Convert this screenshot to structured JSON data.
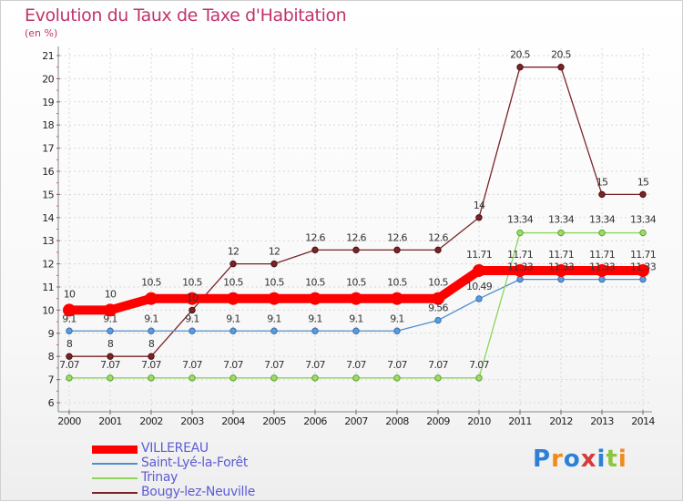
{
  "title": "Evolution du Taux de Taxe d'Habitation",
  "unit": "(en %)",
  "logo_text": "Proxiti",
  "chart_data": {
    "type": "line",
    "title": "Evolution du Taux de Taxe d'Habitation",
    "ylabel": "(en %)",
    "xlabel": "",
    "ylim": [
      6,
      21
    ],
    "grid": true,
    "legend_position": "bottom-left",
    "x": [
      "2000",
      "2001",
      "2002",
      "2003",
      "2004",
      "2005",
      "2006",
      "2007",
      "2008",
      "2009",
      "2010",
      "2011",
      "2012",
      "2013",
      "2014"
    ],
    "yticks": [
      "6",
      "7",
      "8",
      "9",
      "10",
      "11",
      "12",
      "13",
      "14",
      "15",
      "16",
      "17",
      "18",
      "19",
      "20",
      "21"
    ],
    "series": [
      {
        "name": "VILLEREAU",
        "color": "#ff0000",
        "values": [
          10,
          10,
          10.5,
          10.5,
          10.5,
          10.5,
          10.5,
          10.5,
          10.5,
          10.5,
          11.71,
          11.71,
          11.71,
          11.71,
          11.71
        ],
        "labels": [
          "10",
          "10",
          "10.5",
          "10.5",
          "10.5",
          "10.5",
          "10.5",
          "10.5",
          "10.5",
          "10.5",
          "11.71",
          "11.71",
          "11.71",
          "11.71",
          "11.71"
        ]
      },
      {
        "name": "Saint-Lyé-la-Forêt",
        "color": "#4f8fd0",
        "values": [
          9.1,
          9.1,
          9.1,
          9.1,
          9.1,
          9.1,
          9.1,
          9.1,
          9.1,
          9.56,
          10.49,
          11.33,
          11.33,
          11.33,
          11.33
        ],
        "labels": [
          "9.1",
          "9.1",
          "9.1",
          "9.1",
          "9.1",
          "9.1",
          "9.1",
          "9.1",
          "9.1",
          "9.56",
          "10.49",
          "11.33",
          "11.33",
          "11.33",
          "11.33"
        ]
      },
      {
        "name": "Trinay",
        "color": "#8cd55a",
        "values": [
          7.07,
          7.07,
          7.07,
          7.07,
          7.07,
          7.07,
          7.07,
          7.07,
          7.07,
          7.07,
          7.07,
          13.34,
          13.34,
          13.34,
          13.34
        ],
        "labels": [
          "7.07",
          "7.07",
          "7.07",
          "7.07",
          "7.07",
          "7.07",
          "7.07",
          "7.07",
          "7.07",
          "7.07",
          "7.07",
          "13.34",
          "13.34",
          "13.34",
          "13.34"
        ]
      },
      {
        "name": "Bougy-lez-Neuville",
        "color": "#7a2428",
        "values": [
          8,
          8,
          8,
          10,
          12,
          12,
          12.6,
          12.6,
          12.6,
          12.6,
          14,
          20.5,
          20.5,
          15,
          15
        ],
        "labels": [
          "8",
          "8",
          "8",
          "10",
          "12",
          "12",
          "12.6",
          "12.6",
          "12.6",
          "12.6",
          "14",
          "20.5",
          "20.5",
          "15",
          "15"
        ]
      }
    ]
  }
}
